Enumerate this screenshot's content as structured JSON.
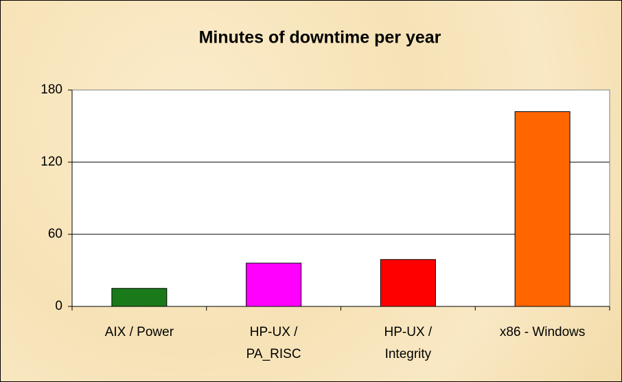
{
  "chart_data": {
    "type": "bar",
    "title": "Minutes of downtime per year",
    "categories": [
      "AIX / Power",
      "HP-UX /\nPA_RISC",
      "HP-UX /\nIntegrity",
      "x86 - Windows"
    ],
    "values": [
      15,
      36,
      39,
      162
    ],
    "colors": [
      "#1a7a1a",
      "#ff00ff",
      "#ff0000",
      "#ff6600"
    ],
    "ylim": [
      0,
      180
    ],
    "yticks": [
      0,
      60,
      120,
      180
    ],
    "grid": true
  }
}
